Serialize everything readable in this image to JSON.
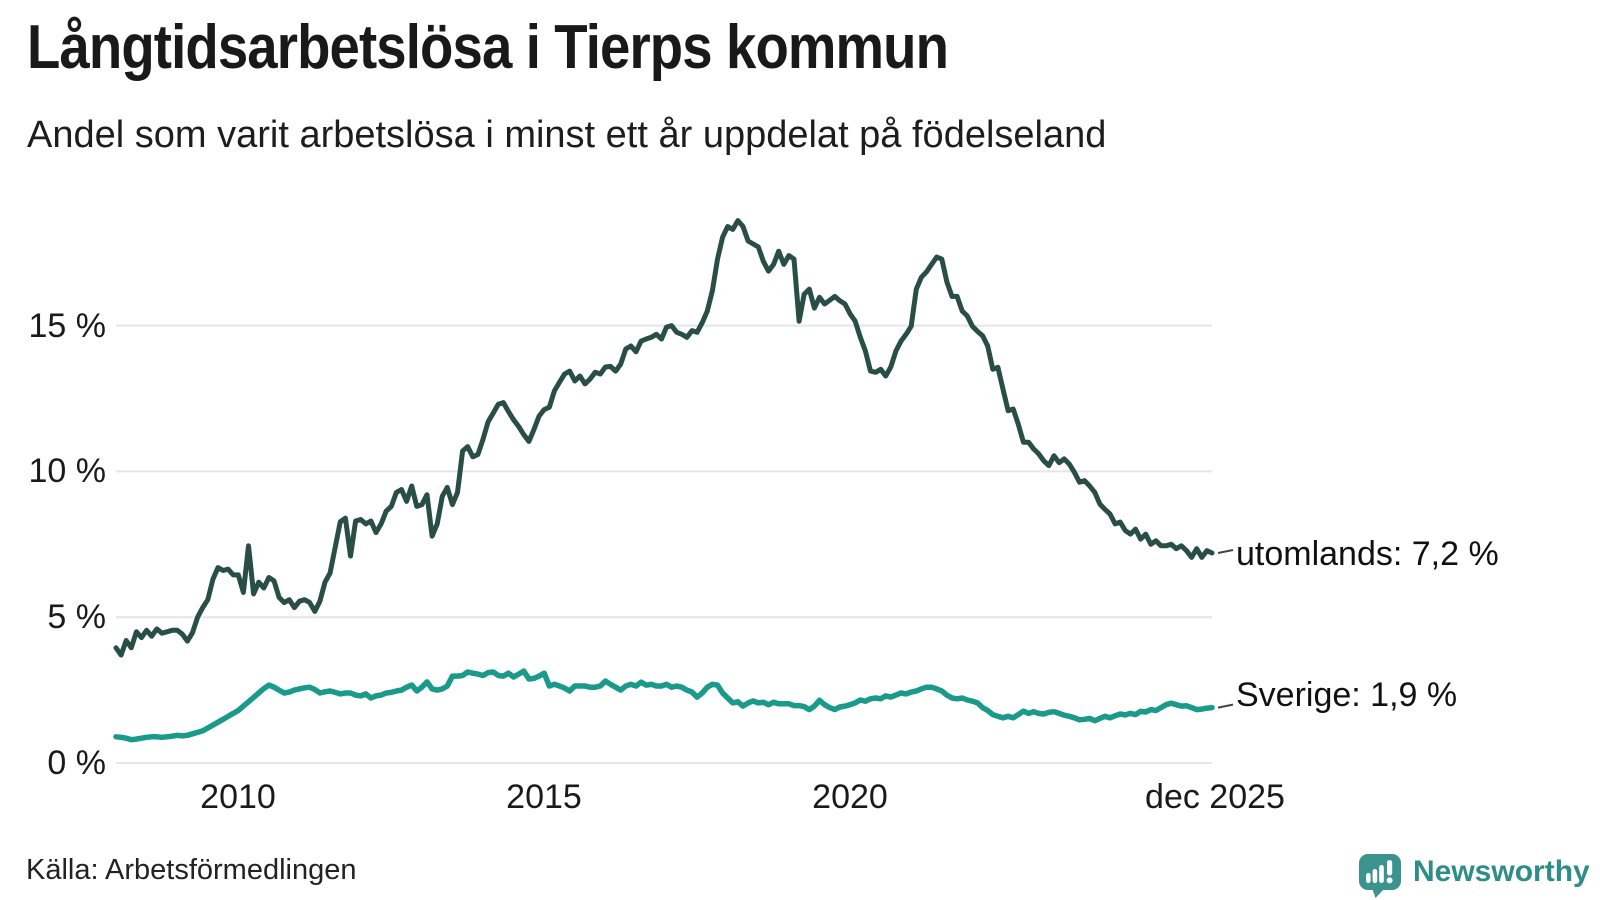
{
  "header": {
    "title": "Långtidsarbetslösa i Tierps kommun",
    "subtitle": "Andel som varit arbetslösa i minst ett år uppdelat på födelseland"
  },
  "footer": {
    "source": "Källa: Arbetsförmedlingen",
    "brand": "Newsworthy",
    "brand_color": "#2f8d87",
    "brand_icon": "newsworthy-speech-bubble-barchart"
  },
  "chart_data": {
    "type": "line",
    "title": "Långtidsarbetslösa i Tierps kommun",
    "subtitle": "Andel som varit arbetslösa i minst ett år uppdelat på födelseland",
    "x_unit": "month",
    "x_start_estimate": "2008-01",
    "x_end": "2025-12",
    "ylabel": "%",
    "ylim": [
      0,
      19
    ],
    "grid": "horizontal",
    "legend_position": "end-of-line-labels",
    "y_ticks": [
      {
        "value": 0,
        "label": "0 %"
      },
      {
        "value": 5,
        "label": "5 %"
      },
      {
        "value": 10,
        "label": "10 %"
      },
      {
        "value": 15,
        "label": "15 %"
      }
    ],
    "x_ticks": [
      {
        "month_index": 24,
        "label": "2010"
      },
      {
        "month_index": 84,
        "label": "2015"
      },
      {
        "month_index": 144,
        "label": "2020"
      },
      {
        "month_index": 215,
        "label": "dec 2025"
      }
    ],
    "series": [
      {
        "id": "sverige",
        "name": "Sverige",
        "end_label": "Sverige: 1,9 %",
        "end_value": 1.9,
        "color": "#199a8b",
        "values": [
          0.9,
          0.88,
          0.85,
          0.8,
          0.82,
          0.85,
          0.88,
          0.9,
          0.9,
          0.88,
          0.9,
          0.92,
          0.95,
          0.93,
          0.95,
          1.0,
          1.05,
          1.1,
          1.2,
          1.3,
          1.4,
          1.5,
          1.6,
          1.7,
          1.8,
          1.95,
          2.1,
          2.25,
          2.4,
          2.55,
          2.67,
          2.6,
          2.5,
          2.4,
          2.43,
          2.5,
          2.54,
          2.58,
          2.6,
          2.52,
          2.4,
          2.44,
          2.47,
          2.42,
          2.37,
          2.4,
          2.4,
          2.33,
          2.3,
          2.37,
          2.23,
          2.3,
          2.33,
          2.4,
          2.42,
          2.47,
          2.5,
          2.6,
          2.67,
          2.47,
          2.6,
          2.78,
          2.54,
          2.5,
          2.54,
          2.64,
          2.98,
          2.98,
          3.0,
          3.12,
          3.08,
          3.05,
          3.0,
          3.1,
          3.12,
          3.0,
          2.98,
          3.08,
          2.95,
          3.05,
          3.15,
          2.88,
          2.9,
          2.98,
          3.08,
          2.64,
          2.7,
          2.64,
          2.57,
          2.47,
          2.64,
          2.64,
          2.64,
          2.6,
          2.6,
          2.64,
          2.81,
          2.7,
          2.6,
          2.5,
          2.64,
          2.7,
          2.64,
          2.77,
          2.67,
          2.7,
          2.64,
          2.64,
          2.7,
          2.6,
          2.64,
          2.6,
          2.5,
          2.43,
          2.26,
          2.4,
          2.6,
          2.7,
          2.67,
          2.4,
          2.23,
          2.06,
          2.1,
          1.95,
          2.06,
          2.13,
          2.06,
          2.08,
          2.0,
          2.08,
          2.03,
          2.03,
          2.03,
          1.97,
          1.97,
          1.93,
          1.83,
          1.95,
          2.15,
          2.0,
          1.9,
          1.83,
          1.92,
          1.95,
          2.0,
          2.06,
          2.16,
          2.12,
          2.2,
          2.23,
          2.2,
          2.3,
          2.26,
          2.33,
          2.4,
          2.37,
          2.43,
          2.47,
          2.54,
          2.6,
          2.6,
          2.54,
          2.47,
          2.33,
          2.23,
          2.2,
          2.23,
          2.16,
          2.12,
          2.06,
          1.9,
          1.8,
          1.66,
          1.6,
          1.55,
          1.6,
          1.55,
          1.66,
          1.78,
          1.7,
          1.76,
          1.7,
          1.68,
          1.74,
          1.76,
          1.7,
          1.64,
          1.6,
          1.55,
          1.48,
          1.5,
          1.53,
          1.45,
          1.53,
          1.6,
          1.55,
          1.62,
          1.68,
          1.65,
          1.7,
          1.66,
          1.77,
          1.75,
          1.83,
          1.8,
          1.9,
          2.0,
          2.05,
          2.0,
          1.95,
          1.96,
          1.9,
          1.83,
          1.85,
          1.88,
          1.9
        ]
      },
      {
        "id": "utomlands",
        "name": "utomlands",
        "end_label": "utomlands: 7,2 %",
        "end_value": 7.2,
        "color": "#294f44",
        "values": [
          3.95,
          3.7,
          4.2,
          3.95,
          4.5,
          4.3,
          4.55,
          4.35,
          4.6,
          4.45,
          4.5,
          4.55,
          4.55,
          4.42,
          4.18,
          4.47,
          5.0,
          5.33,
          5.6,
          6.3,
          6.7,
          6.6,
          6.65,
          6.45,
          6.45,
          5.85,
          7.45,
          5.8,
          6.2,
          6.0,
          6.36,
          6.25,
          5.68,
          5.5,
          5.6,
          5.33,
          5.55,
          5.6,
          5.5,
          5.2,
          5.55,
          6.2,
          6.52,
          7.4,
          8.27,
          8.4,
          7.1,
          8.3,
          8.35,
          8.2,
          8.3,
          7.9,
          8.2,
          8.64,
          8.8,
          9.28,
          9.38,
          8.97,
          9.5,
          8.8,
          8.86,
          9.2,
          7.78,
          8.2,
          9.15,
          9.45,
          8.86,
          9.28,
          10.7,
          10.85,
          10.5,
          10.58,
          11.1,
          11.7,
          12.0,
          12.3,
          12.36,
          12.05,
          11.77,
          11.54,
          11.26,
          11.03,
          11.44,
          11.9,
          12.12,
          12.2,
          12.76,
          13.06,
          13.34,
          13.44,
          13.1,
          13.27,
          13.0,
          13.17,
          13.4,
          13.34,
          13.58,
          13.6,
          13.44,
          13.68,
          14.2,
          14.3,
          14.1,
          14.47,
          14.54,
          14.6,
          14.7,
          14.54,
          14.95,
          15.0,
          14.77,
          14.7,
          14.6,
          14.83,
          14.77,
          15.1,
          15.5,
          16.2,
          17.28,
          18.03,
          18.4,
          18.3,
          18.6,
          18.4,
          17.9,
          17.8,
          17.7,
          17.2,
          16.87,
          17.1,
          17.55,
          17.1,
          17.4,
          17.28,
          15.15,
          16.08,
          16.25,
          15.6,
          15.97,
          15.74,
          15.87,
          16.0,
          15.85,
          15.74,
          15.4,
          15.15,
          14.6,
          14.13,
          13.44,
          13.4,
          13.5,
          13.27,
          13.58,
          14.13,
          14.47,
          14.7,
          14.98,
          16.25,
          16.66,
          16.84,
          17.1,
          17.35,
          17.28,
          16.5,
          16.0,
          16.0,
          15.5,
          15.33,
          14.98,
          14.8,
          14.65,
          14.3,
          13.5,
          13.57,
          12.82,
          12.08,
          12.14,
          11.62,
          11.0,
          11.0,
          10.77,
          10.6,
          10.36,
          10.2,
          10.54,
          10.3,
          10.43,
          10.25,
          9.97,
          9.63,
          9.68,
          9.5,
          9.28,
          8.88,
          8.7,
          8.54,
          8.2,
          8.26,
          7.97,
          7.85,
          8.02,
          7.68,
          7.85,
          7.5,
          7.62,
          7.45,
          7.45,
          7.5,
          7.35,
          7.45,
          7.28,
          7.05,
          7.35,
          7.05,
          7.28,
          7.2
        ]
      }
    ]
  }
}
